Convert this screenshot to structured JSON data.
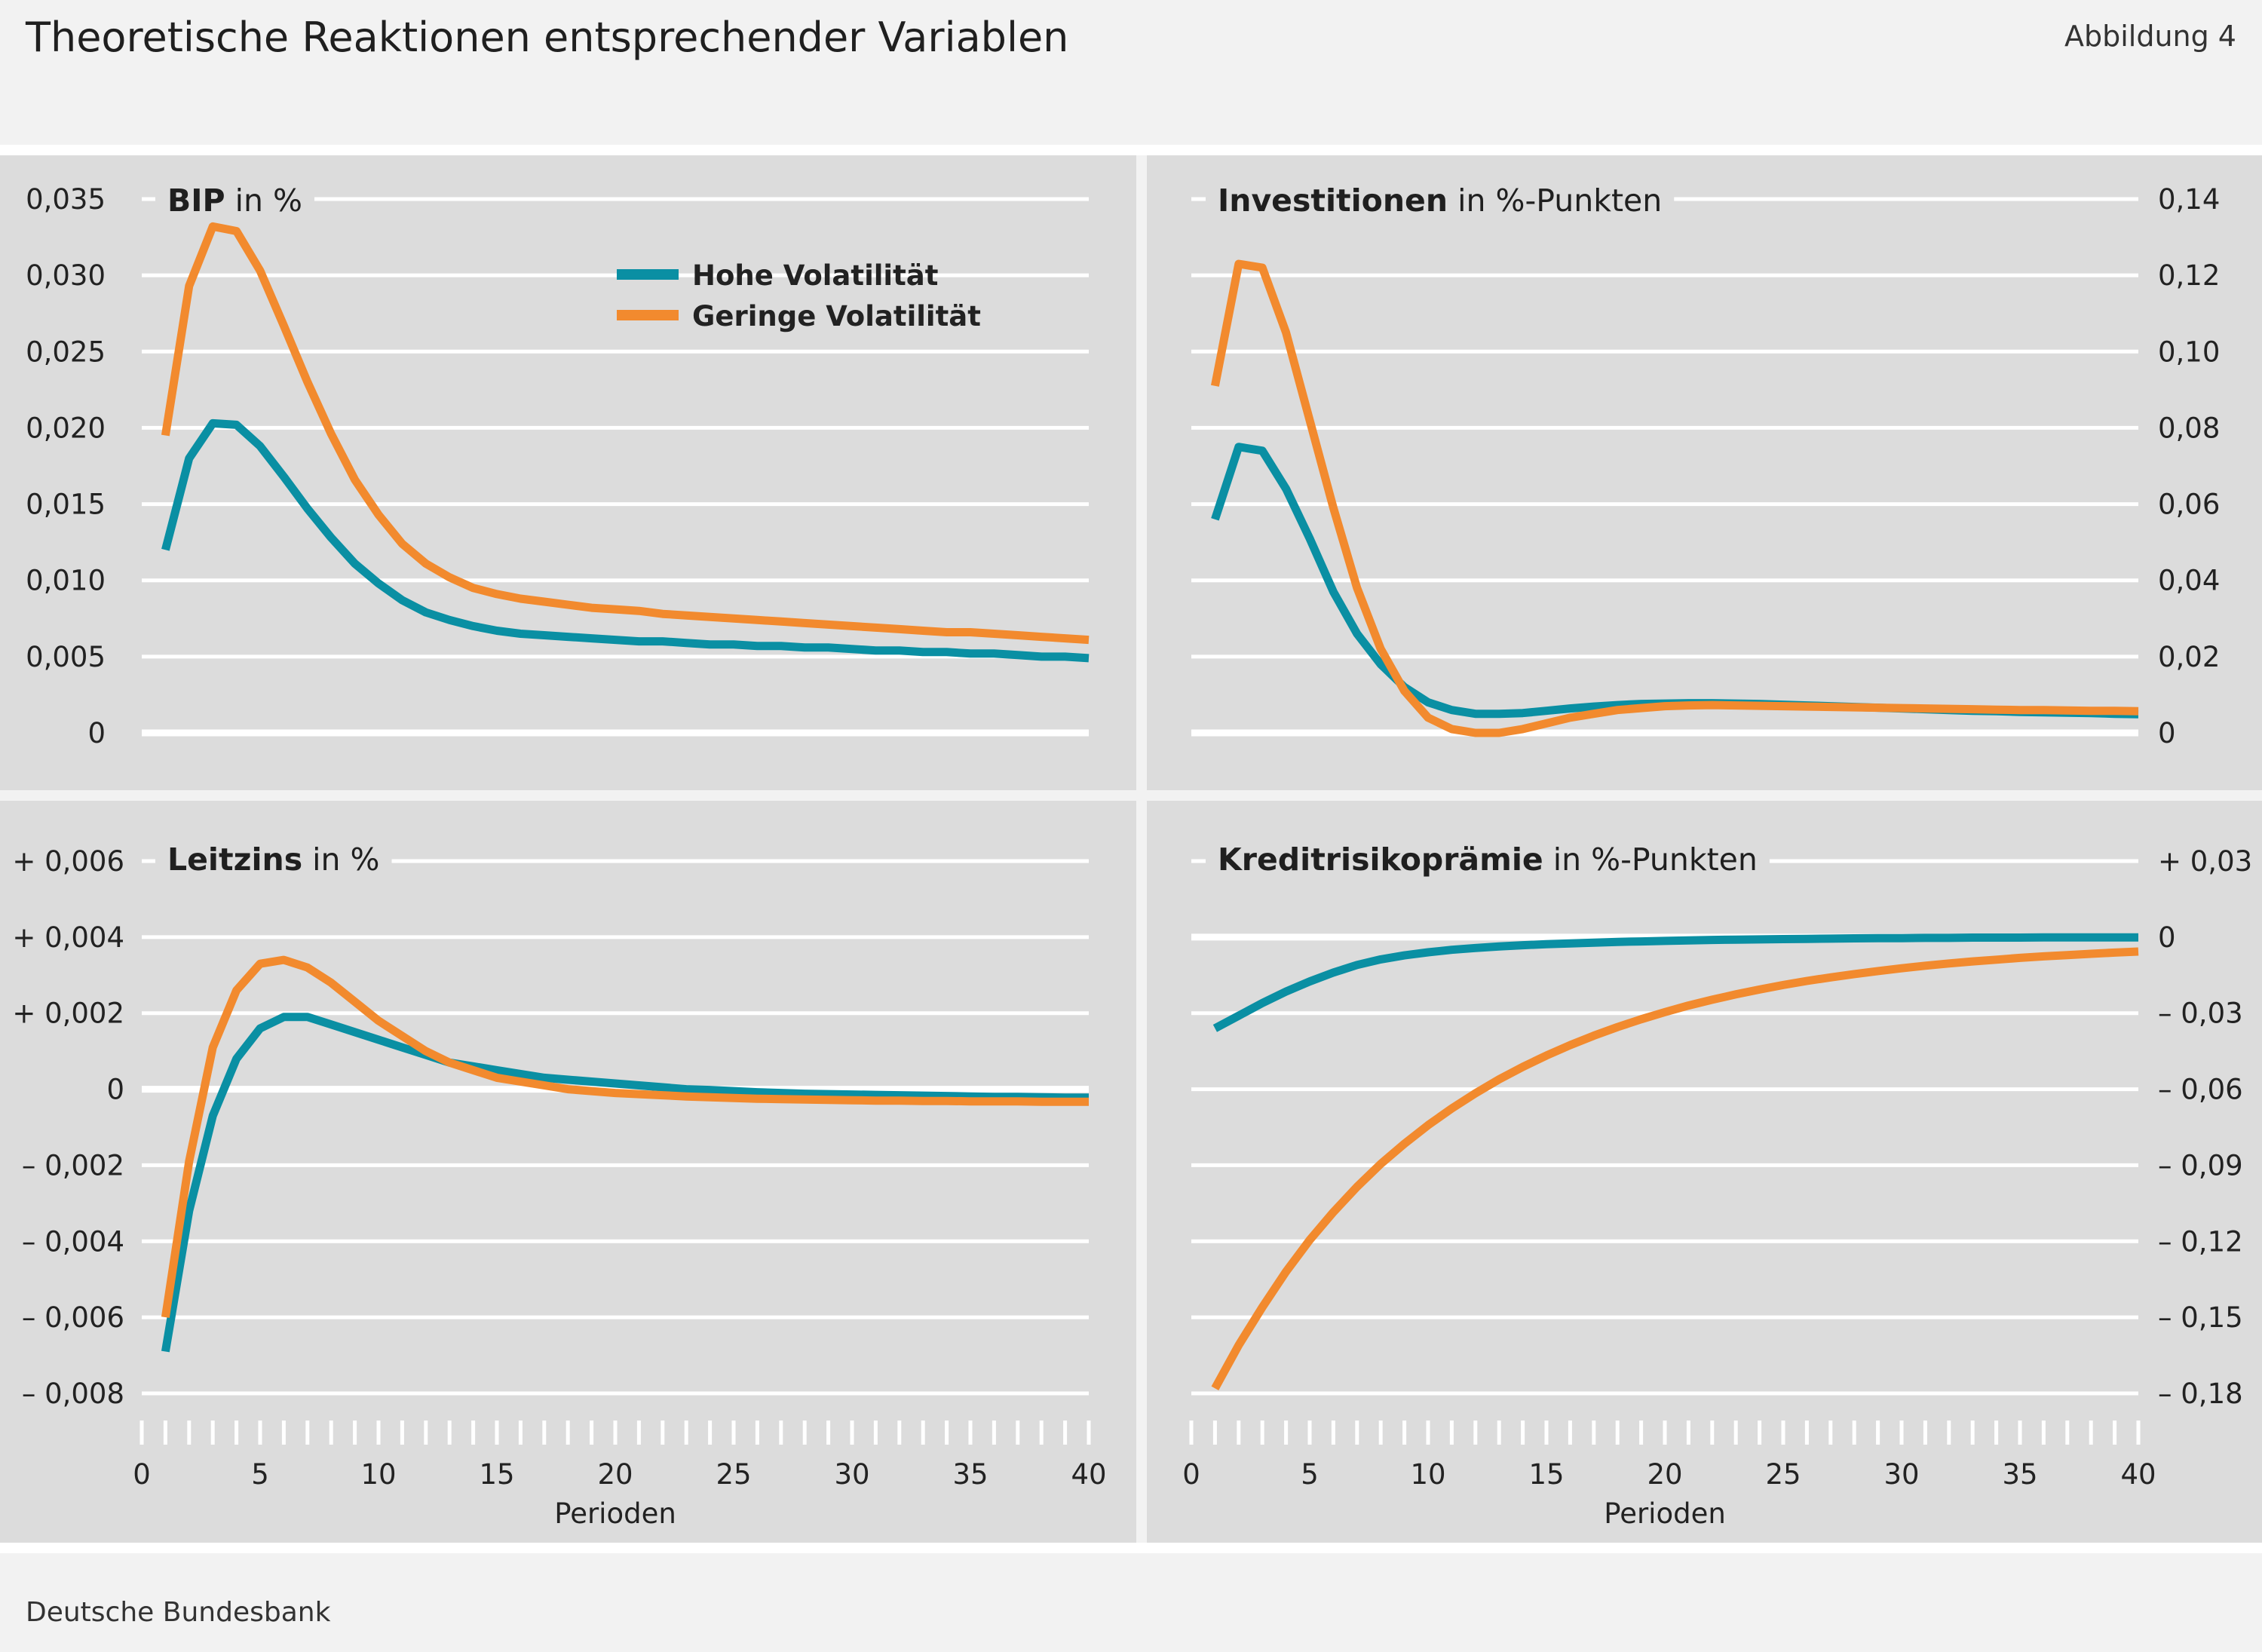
{
  "header": {
    "title": "Theoretische Reaktionen entsprechender Variablen",
    "figure_label": "Abbildung 4"
  },
  "footer": {
    "source": "Deutsche Bundesbank"
  },
  "colors": {
    "high": "#0a8fa3",
    "low": "#f28a2e",
    "panel_bg": "#dcdcdc",
    "grid": "#ffffff"
  },
  "legend": [
    "Hohe Volatilität",
    "Geringe Volatilität"
  ],
  "chart_data": [
    {
      "type": "line",
      "title": "BIP",
      "unit": "in %",
      "x": [
        1,
        2,
        3,
        4,
        5,
        6,
        7,
        8,
        9,
        10,
        11,
        12,
        13,
        14,
        15,
        16,
        17,
        18,
        19,
        20,
        21,
        22,
        23,
        24,
        25,
        26,
        27,
        28,
        29,
        30,
        31,
        32,
        33,
        34,
        35,
        36,
        37,
        38,
        39,
        40
      ],
      "xlabel": "Perioden",
      "xlim": [
        0,
        40
      ],
      "ylim": [
        0,
        0.035
      ],
      "yticks": [
        0,
        0.005,
        0.01,
        0.015,
        0.02,
        0.025,
        0.03,
        0.035
      ],
      "ytick_labels": [
        "0",
        "0,005",
        "0,010",
        "0,015",
        "0,020",
        "0,025",
        "0,030",
        "0,035"
      ],
      "axis_side": "left",
      "legend_position": "top-center",
      "series": [
        {
          "name": "Hohe Volatilität",
          "values": [
            0.012,
            0.018,
            0.0203,
            0.0202,
            0.0188,
            0.0168,
            0.0147,
            0.0128,
            0.0111,
            0.0098,
            0.0087,
            0.0079,
            0.0074,
            0.007,
            0.0067,
            0.0065,
            0.0064,
            0.0063,
            0.0062,
            0.0061,
            0.006,
            0.006,
            0.0059,
            0.0058,
            0.0058,
            0.0057,
            0.0057,
            0.0056,
            0.0056,
            0.0055,
            0.0054,
            0.0054,
            0.0053,
            0.0053,
            0.0052,
            0.0052,
            0.0051,
            0.005,
            0.005,
            0.0049
          ]
        },
        {
          "name": "Geringe Volatilität",
          "values": [
            0.0195,
            0.0293,
            0.0332,
            0.0329,
            0.0303,
            0.0267,
            0.023,
            0.0196,
            0.0166,
            0.0143,
            0.0124,
            0.0111,
            0.0102,
            0.0095,
            0.0091,
            0.0088,
            0.0086,
            0.0084,
            0.0082,
            0.0081,
            0.008,
            0.0078,
            0.0077,
            0.0076,
            0.0075,
            0.0074,
            0.0073,
            0.0072,
            0.0071,
            0.007,
            0.0069,
            0.0068,
            0.0067,
            0.0066,
            0.0066,
            0.0065,
            0.0064,
            0.0063,
            0.0062,
            0.0061
          ]
        }
      ]
    },
    {
      "type": "line",
      "title": "Investitionen",
      "unit": "in %-Punkten",
      "x": [
        1,
        2,
        3,
        4,
        5,
        6,
        7,
        8,
        9,
        10,
        11,
        12,
        13,
        14,
        15,
        16,
        17,
        18,
        19,
        20,
        21,
        22,
        23,
        24,
        25,
        26,
        27,
        28,
        29,
        30,
        31,
        32,
        33,
        34,
        35,
        36,
        37,
        38,
        39,
        40
      ],
      "xlabel": "Perioden",
      "xlim": [
        0,
        40
      ],
      "ylim": [
        0,
        0.14
      ],
      "yticks": [
        0,
        0.02,
        0.04,
        0.06,
        0.08,
        0.1,
        0.12,
        0.14
      ],
      "ytick_labels": [
        "0",
        "0,02",
        "0,04",
        "0,06",
        "0,08",
        "0,10",
        "0,12",
        "0,14"
      ],
      "axis_side": "right",
      "series": [
        {
          "name": "Hohe Volatilität",
          "values": [
            0.056,
            0.075,
            0.074,
            0.064,
            0.051,
            0.037,
            0.026,
            0.018,
            0.012,
            0.008,
            0.006,
            0.005,
            0.005,
            0.0052,
            0.0058,
            0.0064,
            0.0069,
            0.0073,
            0.0076,
            0.0077,
            0.0078,
            0.0078,
            0.0077,
            0.0076,
            0.0074,
            0.0072,
            0.007,
            0.0068,
            0.0066,
            0.0064,
            0.0062,
            0.006,
            0.0058,
            0.0057,
            0.0055,
            0.0054,
            0.0053,
            0.0052,
            0.005,
            0.0049
          ]
        },
        {
          "name": "Geringe Volatilität",
          "values": [
            0.091,
            0.123,
            0.122,
            0.105,
            0.082,
            0.059,
            0.038,
            0.022,
            0.011,
            0.004,
            0.001,
            0.0,
            0.0,
            0.001,
            0.0025,
            0.004,
            0.005,
            0.006,
            0.0065,
            0.007,
            0.0072,
            0.0073,
            0.0072,
            0.0071,
            0.007,
            0.0069,
            0.0068,
            0.0067,
            0.0066,
            0.0065,
            0.0064,
            0.0063,
            0.0062,
            0.0061,
            0.006,
            0.006,
            0.0059,
            0.0058,
            0.0058,
            0.0057
          ]
        }
      ]
    },
    {
      "type": "line",
      "title": "Leitzins",
      "unit": "in %",
      "x": [
        1,
        2,
        3,
        4,
        5,
        6,
        7,
        8,
        9,
        10,
        11,
        12,
        13,
        14,
        15,
        16,
        17,
        18,
        19,
        20,
        21,
        22,
        23,
        24,
        25,
        26,
        27,
        28,
        29,
        30,
        31,
        32,
        33,
        34,
        35,
        36,
        37,
        38,
        39,
        40
      ],
      "xlabel": "Perioden",
      "xlim": [
        0,
        40
      ],
      "ylim": [
        -0.008,
        0.006
      ],
      "yticks": [
        -0.008,
        -0.006,
        -0.004,
        -0.002,
        0,
        0.002,
        0.004,
        0.006
      ],
      "ytick_labels": [
        "– 0,008",
        "– 0,006",
        "– 0,004",
        "– 0,002",
        "0",
        "+ 0,002",
        "+ 0,004",
        "+ 0,006"
      ],
      "axis_side": "left",
      "xtick_labels": [
        "0",
        "5",
        "10",
        "15",
        "20",
        "25",
        "30",
        "35",
        "40"
      ],
      "series": [
        {
          "name": "Hohe Volatilität",
          "values": [
            -0.0069,
            -0.0032,
            -0.0007,
            0.0008,
            0.0016,
            0.0019,
            0.0019,
            0.0017,
            0.0015,
            0.0013,
            0.0011,
            0.0009,
            0.0007,
            0.0006,
            0.0005,
            0.0004,
            0.0003,
            0.00025,
            0.0002,
            0.00015,
            0.0001,
            5e-05,
            0.0,
            -2e-05,
            -5e-05,
            -8e-05,
            -0.0001,
            -0.00012,
            -0.00013,
            -0.00014,
            -0.00015,
            -0.00016,
            -0.00017,
            -0.00018,
            -0.00019,
            -0.0002,
            -0.0002,
            -0.00021,
            -0.00022,
            -0.00022
          ]
        },
        {
          "name": "Geringe Volatilität",
          "values": [
            -0.006,
            -0.0019,
            0.0011,
            0.0026,
            0.0033,
            0.0034,
            0.0032,
            0.0028,
            0.0023,
            0.0018,
            0.0014,
            0.001,
            0.0007,
            0.0005,
            0.0003,
            0.0002,
            0.0001,
            0.0,
            -5e-05,
            -0.0001,
            -0.00013,
            -0.00016,
            -0.00019,
            -0.00021,
            -0.00023,
            -0.00025,
            -0.00026,
            -0.00027,
            -0.00028,
            -0.00029,
            -0.0003,
            -0.0003,
            -0.00031,
            -0.00031,
            -0.00032,
            -0.00032,
            -0.00032,
            -0.00033,
            -0.00033,
            -0.00033
          ]
        }
      ]
    },
    {
      "type": "line",
      "title": "Kreditrisikoprämie",
      "unit": "in %-Punkten",
      "x": [
        1,
        2,
        3,
        4,
        5,
        6,
        7,
        8,
        9,
        10,
        11,
        12,
        13,
        14,
        15,
        16,
        17,
        18,
        19,
        20,
        21,
        22,
        23,
        24,
        25,
        26,
        27,
        28,
        29,
        30,
        31,
        32,
        33,
        34,
        35,
        36,
        37,
        38,
        39,
        40
      ],
      "xlabel": "Perioden",
      "xlim": [
        0,
        40
      ],
      "ylim": [
        -0.18,
        0.03
      ],
      "yticks": [
        -0.18,
        -0.15,
        -0.12,
        -0.09,
        -0.06,
        -0.03,
        0,
        0.03
      ],
      "ytick_labels": [
        "– 0,18",
        "– 0,15",
        "– 0,12",
        "– 0,09",
        "– 0,06",
        "– 0,03",
        "0",
        "+ 0,03"
      ],
      "axis_side": "right",
      "xtick_labels": [
        "0",
        "5",
        "10",
        "15",
        "20",
        "25",
        "30",
        "35",
        "40"
      ],
      "series": [
        {
          "name": "Hohe Volatilität",
          "values": [
            -0.036,
            -0.031,
            -0.026,
            -0.0215,
            -0.0175,
            -0.014,
            -0.011,
            -0.0088,
            -0.0072,
            -0.006,
            -0.005,
            -0.0043,
            -0.0037,
            -0.0032,
            -0.0028,
            -0.0025,
            -0.0022,
            -0.0019,
            -0.0017,
            -0.0015,
            -0.0013,
            -0.0011,
            -0.001,
            -0.0009,
            -0.0008,
            -0.0007,
            -0.0006,
            -0.0005,
            -0.0004,
            -0.0004,
            -0.0003,
            -0.0003,
            -0.0002,
            -0.0002,
            -0.0002,
            -0.0001,
            -0.0001,
            -0.0001,
            -0.0001,
            -0.0001
          ]
        },
        {
          "name": "Geringe Volatilität",
          "values": [
            -0.178,
            -0.161,
            -0.146,
            -0.132,
            -0.1195,
            -0.1085,
            -0.0985,
            -0.0895,
            -0.0815,
            -0.0742,
            -0.0676,
            -0.0616,
            -0.0561,
            -0.0512,
            -0.0467,
            -0.0426,
            -0.0389,
            -0.0355,
            -0.0324,
            -0.0296,
            -0.027,
            -0.0247,
            -0.0226,
            -0.0207,
            -0.0189,
            -0.0173,
            -0.0159,
            -0.0146,
            -0.0134,
            -0.0123,
            -0.0113,
            -0.0104,
            -0.0096,
            -0.0089,
            -0.0082,
            -0.0076,
            -0.0071,
            -0.0066,
            -0.0061,
            -0.0057
          ]
        }
      ]
    }
  ]
}
